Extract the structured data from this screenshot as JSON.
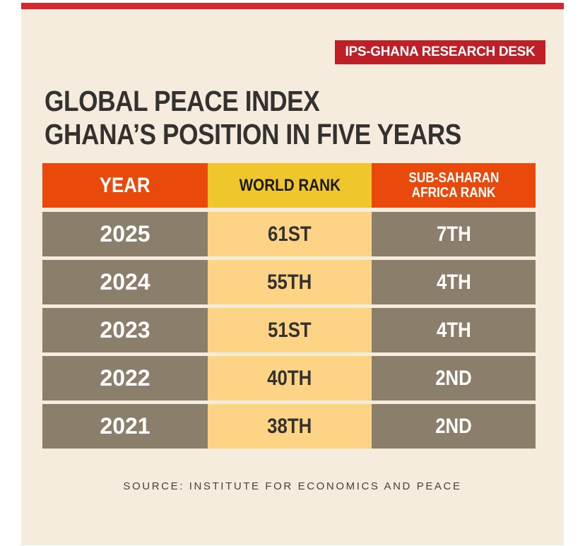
{
  "badge": "IPS-GHANA RESEARCH DESK",
  "title": {
    "line1": "GLOBAL PEACE INDEX",
    "line2": "GHANA’S POSITION IN FIVE YEARS"
  },
  "table": {
    "headers": {
      "year": "YEAR",
      "world_rank": "WORLD RANK",
      "ssa_rank_line1": "SUB-SAHARAN",
      "ssa_rank_line2": "AFRICA RANK"
    },
    "rows": [
      {
        "year": "2025",
        "world_rank": "61ST",
        "ssa_rank": "7TH"
      },
      {
        "year": "2024",
        "world_rank": "55TH",
        "ssa_rank": "4TH"
      },
      {
        "year": "2023",
        "world_rank": "51ST",
        "ssa_rank": "4TH"
      },
      {
        "year": "2022",
        "world_rank": "40TH",
        "ssa_rank": "2ND"
      },
      {
        "year": "2021",
        "world_rank": "38TH",
        "ssa_rank": "2ND"
      }
    ]
  },
  "source": "SOURCE: INSTITUTE FOR ECONOMICS AND PEACE",
  "colors": {
    "top_bar": "#d7282f",
    "badge": "#bf1f27",
    "header_orange": "#e94a0c",
    "header_yellow": "#f0c62d",
    "row_taupe": "#8b7f6c",
    "row_light_yellow": "#fdd485",
    "background": "#f5ecdd"
  }
}
